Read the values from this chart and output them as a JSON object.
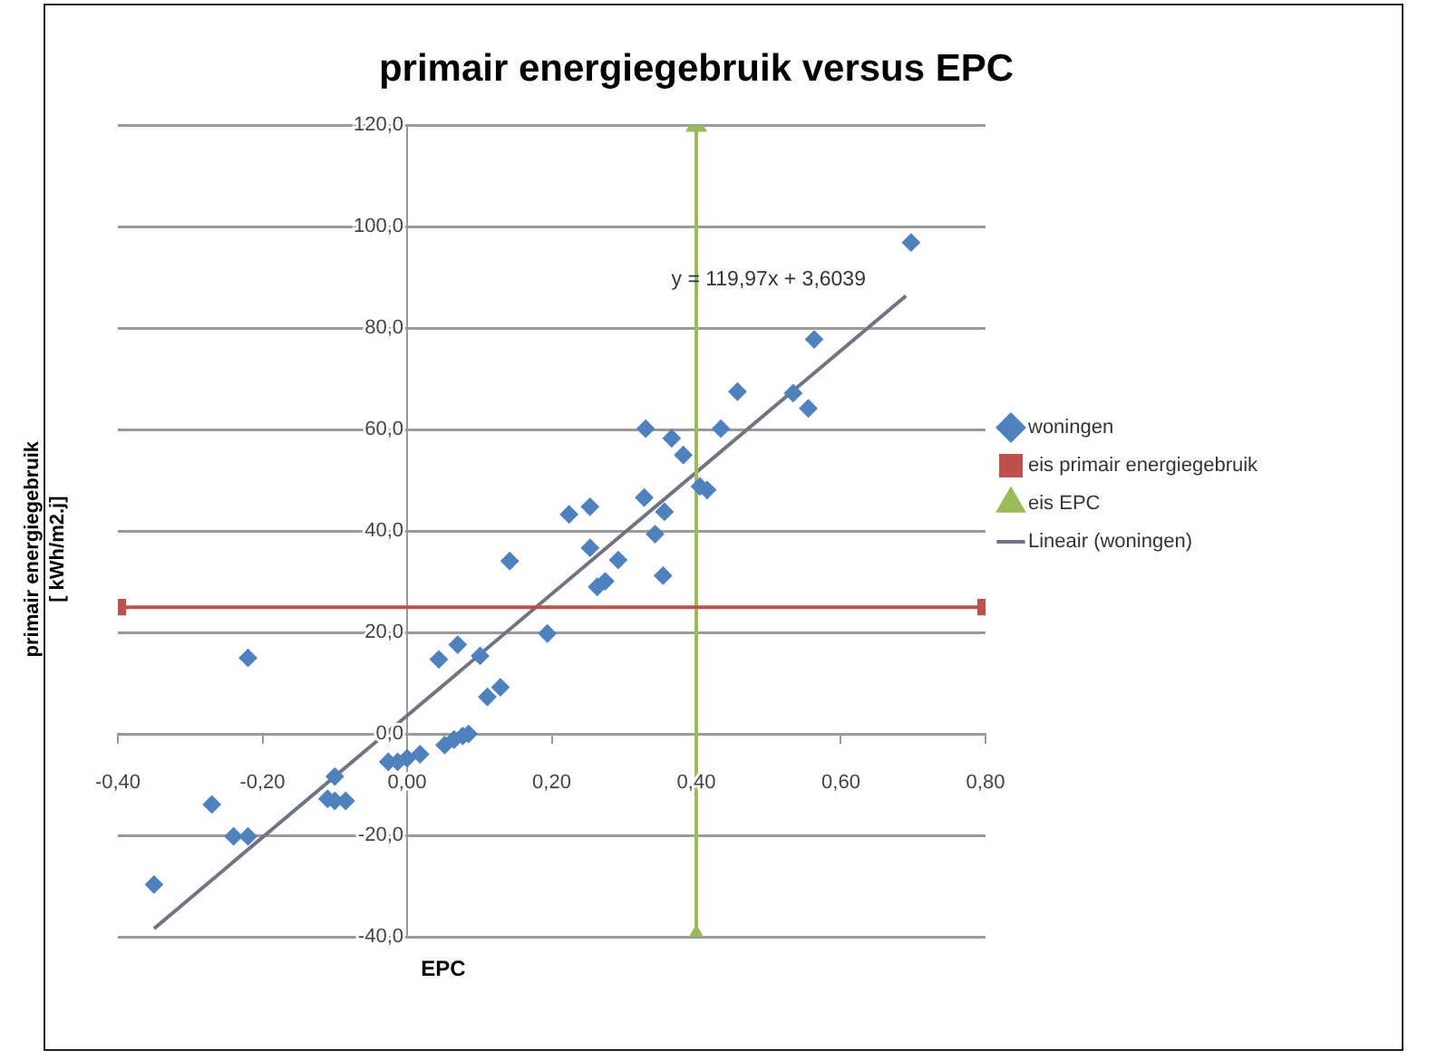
{
  "chart_data": {
    "type": "scatter",
    "title": "primair energiegebruik versus EPC",
    "xlabel": "EPC",
    "ylabel": "primair energiegebruik\n[ kWh/m2.j]",
    "xlim": [
      -0.4,
      0.8
    ],
    "ylim": [
      -40,
      120
    ],
    "xticks": [
      {
        "value": -0.4,
        "label": "-0,40"
      },
      {
        "value": -0.2,
        "label": "-0,20"
      },
      {
        "value": 0,
        "label": "0,00"
      },
      {
        "value": 0.2,
        "label": "0,20"
      },
      {
        "value": 0.4,
        "label": "0,40"
      },
      {
        "value": 0.6,
        "label": "0,60"
      },
      {
        "value": 0.8,
        "label": "0,80"
      }
    ],
    "yticks": [
      {
        "value": -40,
        "label": "-40,0"
      },
      {
        "value": -20,
        "label": "-20,0"
      },
      {
        "value": 0,
        "label": "0,0"
      },
      {
        "value": 20,
        "label": "20,0"
      },
      {
        "value": 40,
        "label": "40,0"
      },
      {
        "value": 60,
        "label": "60,0"
      },
      {
        "value": 80,
        "label": "80,0"
      },
      {
        "value": 100,
        "label": "100,0"
      },
      {
        "value": 120,
        "label": "120,0"
      }
    ],
    "grid": "y",
    "legend": "right",
    "annotations": [
      "y = 119,97x + 3,6039"
    ],
    "series": [
      {
        "name": "woningen",
        "type": "scatter",
        "marker": "diamond",
        "color": "#4f81bd",
        "x": [
          -0.35,
          -0.27,
          -0.24,
          -0.22,
          -0.22,
          -0.1,
          -0.11,
          -0.1,
          -0.085,
          -0.026,
          -0.013,
          0,
          0.018,
          0.052,
          0.065,
          0.077,
          0.085,
          0.044,
          0.07,
          0.101,
          0.111,
          0.129,
          0.194,
          0.142,
          0.263,
          0.274,
          0.292,
          0.354,
          0.33,
          0.366,
          0.382,
          0.405,
          0.415,
          0.328,
          0.356,
          0.343,
          0.253,
          0.224,
          0.253,
          0.434,
          0.457,
          0.697,
          0.563,
          0.534,
          0.555
        ],
        "values": [
          -29.7,
          -13.9,
          -20.2,
          -20.2,
          15,
          -8.4,
          -12.8,
          -13.2,
          -13.2,
          -5.5,
          -5.5,
          -4.8,
          -4,
          -2.2,
          -1.1,
          -0.4,
          0,
          14.7,
          17.6,
          15.4,
          7.3,
          9.2,
          19.8,
          34.1,
          29,
          30.1,
          34.3,
          31.2,
          60.2,
          58.3,
          55,
          48.8,
          48.1,
          46.6,
          43.8,
          39.4,
          44.8,
          43.3,
          36.7,
          60.2,
          67.5,
          96.9,
          77.8,
          67.2,
          64.2
        ]
      },
      {
        "name": "eis primair energiegebruik",
        "type": "line",
        "marker": "square",
        "color": "#c0504d",
        "x": [
          -0.4,
          0.8
        ],
        "values": [
          25,
          25
        ]
      },
      {
        "name": "eis EPC",
        "type": "line",
        "marker": "triangle",
        "color": "#9bbb59",
        "x": [
          0.4,
          0.4
        ],
        "values": [
          -40,
          120
        ]
      },
      {
        "name": "Lineair (woningen)",
        "type": "line",
        "marker": "none",
        "color": "#6e7580",
        "x": [
          -0.35,
          0.69
        ],
        "values": [
          -38.4,
          86.4
        ]
      }
    ]
  }
}
